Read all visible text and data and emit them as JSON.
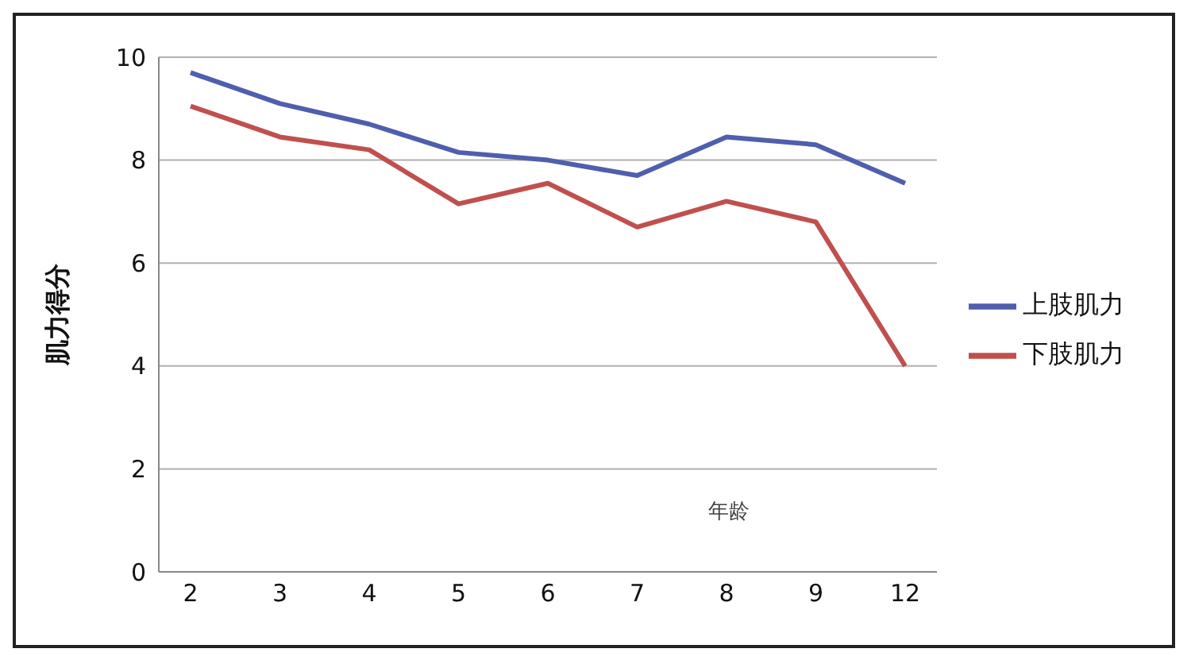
{
  "chart_data": {
    "type": "line",
    "ylabel": "肌力得分",
    "xlabel": "年龄",
    "categories": [
      "2",
      "3",
      "4",
      "5",
      "6",
      "7",
      "8",
      "9",
      "12"
    ],
    "series": [
      {
        "name": "上肢肌力",
        "color": "#4f5fae",
        "values": [
          9.7,
          9.1,
          8.7,
          8.15,
          8.0,
          7.7,
          8.45,
          8.3,
          7.55
        ]
      },
      {
        "name": "下肢肌力",
        "color": "#c0504d",
        "values": [
          9.05,
          8.45,
          8.2,
          7.15,
          7.55,
          6.7,
          7.2,
          6.8,
          4.0
        ]
      }
    ],
    "ylim": [
      0,
      10
    ],
    "yticks": [
      0,
      2,
      4,
      6,
      8,
      10
    ],
    "grid": "y",
    "legend": "right",
    "marker": "none",
    "line_style": "solid"
  }
}
